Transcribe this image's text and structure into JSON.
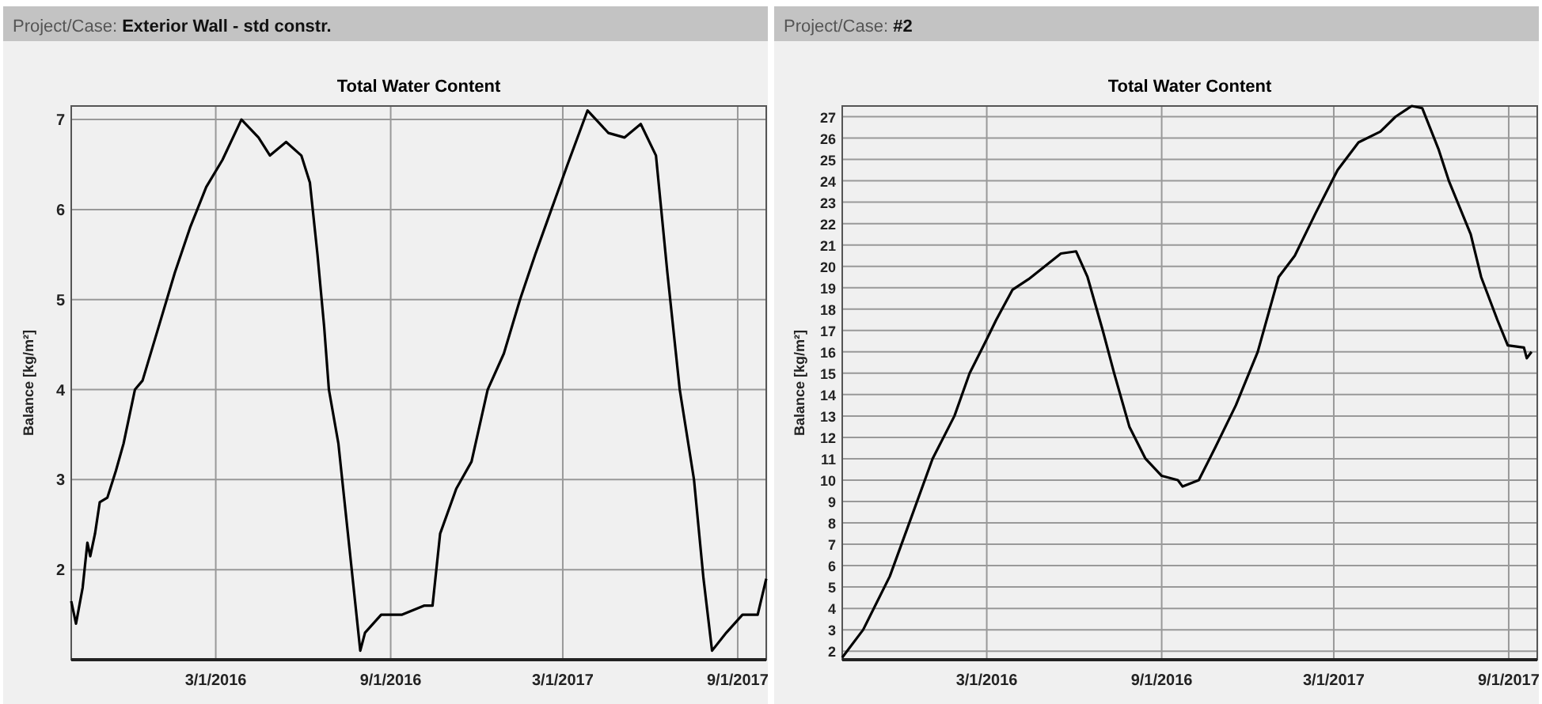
{
  "chart_data": [
    {
      "type": "line",
      "title": "Total Water Content",
      "annotations": [
        "Project/Case: Exterior Wall - std constr."
      ],
      "ylabel": "Balance [kg/m²]",
      "grid": true,
      "xlim": [
        "2015-10-01",
        "2017-10-01"
      ],
      "ylim": [
        1,
        7.15
      ],
      "yticks": [
        2,
        3,
        4,
        5,
        6,
        7
      ],
      "xticks": [
        {
          "value": "2016-03-01",
          "label": "3/1/2016"
        },
        {
          "value": "2016-09-01",
          "label": "9/1/2016"
        },
        {
          "value": "2017-03-01",
          "label": "3/1/2017"
        },
        {
          "value": "2017-09-01",
          "label": "9/1/2017"
        }
      ],
      "x": [
        "2015-10-01",
        "2015-10-06",
        "2015-10-13",
        "2015-10-18",
        "2015-10-21",
        "2015-10-26",
        "2015-10-31",
        "2015-11-08",
        "2015-11-17",
        "2015-11-25",
        "2015-12-07",
        "2015-12-15",
        "2016-01-01",
        "2016-01-18",
        "2016-02-03",
        "2016-02-20",
        "2016-03-08",
        "2016-03-28",
        "2016-04-15",
        "2016-04-27",
        "2016-05-14",
        "2016-05-30",
        "2016-06-08",
        "2016-06-16",
        "2016-06-23",
        "2016-06-28",
        "2016-07-08",
        "2016-07-20",
        "2016-07-31",
        "2016-08-05",
        "2016-08-22",
        "2016-09-13",
        "2016-10-06",
        "2016-10-15",
        "2016-10-23",
        "2016-11-09",
        "2016-11-25",
        "2016-12-12",
        "2016-12-29",
        "2017-01-15",
        "2017-01-31",
        "2017-02-17",
        "2017-03-06",
        "2017-03-27",
        "2017-04-18",
        "2017-05-05",
        "2017-05-22",
        "2017-06-07",
        "2017-06-19",
        "2017-07-02",
        "2017-07-17",
        "2017-07-27",
        "2017-08-05",
        "2017-08-20",
        "2017-09-06",
        "2017-09-22",
        "2017-10-01"
      ],
      "series": [
        {
          "color": "#000000",
          "line_style": "solid",
          "values": [
            1.65,
            1.4,
            1.8,
            2.3,
            2.15,
            2.4,
            2.75,
            2.8,
            3.1,
            3.4,
            4.0,
            4.1,
            4.7,
            5.3,
            5.8,
            6.25,
            6.55,
            7.0,
            6.8,
            6.6,
            6.75,
            6.6,
            6.3,
            5.5,
            4.7,
            4.0,
            3.4,
            2.2,
            1.1,
            1.3,
            1.5,
            1.5,
            1.6,
            1.6,
            2.4,
            2.9,
            3.2,
            4.0,
            4.4,
            5.0,
            5.5,
            6.0,
            6.5,
            7.1,
            6.85,
            6.8,
            6.95,
            6.6,
            5.3,
            4.0,
            3.0,
            1.9,
            1.1,
            1.3,
            1.5,
            1.5,
            1.9
          ]
        }
      ]
    },
    {
      "type": "line",
      "title": "Total Water Content",
      "annotations": [
        "Project/Case: #2"
      ],
      "ylabel": "Balance [kg/m²]",
      "grid": true,
      "xlim": [
        "2015-10-01",
        "2017-10-01"
      ],
      "ylim": [
        1.6,
        27.5
      ],
      "yticks": [
        2,
        3,
        4,
        5,
        6,
        7,
        8,
        9,
        10,
        11,
        12,
        13,
        14,
        15,
        16,
        17,
        18,
        19,
        20,
        21,
        22,
        23,
        24,
        25,
        26,
        27
      ],
      "xticks": [
        {
          "value": "2016-03-01",
          "label": "3/1/2016"
        },
        {
          "value": "2016-09-01",
          "label": "9/1/2016"
        },
        {
          "value": "2017-03-01",
          "label": "3/1/2017"
        },
        {
          "value": "2017-09-01",
          "label": "9/1/2017"
        }
      ],
      "x": [
        "2015-10-01",
        "2015-10-23",
        "2015-11-20",
        "2015-12-13",
        "2016-01-04",
        "2016-01-27",
        "2016-02-12",
        "2016-02-29",
        "2016-03-11",
        "2016-03-28",
        "2016-04-14",
        "2016-05-01",
        "2016-05-18",
        "2016-06-03",
        "2016-06-15",
        "2016-07-01",
        "2016-07-13",
        "2016-07-29",
        "2016-08-15",
        "2016-09-01",
        "2016-09-18",
        "2016-09-23",
        "2016-10-10",
        "2016-10-27",
        "2016-11-18",
        "2016-12-11",
        "2017-01-02",
        "2017-01-19",
        "2017-02-10",
        "2017-03-05",
        "2017-03-27",
        "2017-04-19",
        "2017-05-05",
        "2017-05-22",
        "2017-06-02",
        "2017-06-19",
        "2017-06-30",
        "2017-07-23",
        "2017-08-03",
        "2017-08-20",
        "2017-08-31",
        "2017-09-17",
        "2017-09-20",
        "2017-09-25"
      ],
      "series": [
        {
          "color": "#000000",
          "line_style": "solid",
          "values": [
            1.7,
            3.0,
            5.5,
            8.3,
            11.0,
            13.0,
            15.0,
            16.5,
            17.5,
            18.9,
            19.4,
            20.0,
            20.6,
            20.7,
            19.5,
            17.0,
            15.0,
            12.5,
            11.0,
            10.2,
            10.0,
            9.7,
            10.0,
            11.5,
            13.5,
            16.0,
            19.5,
            20.5,
            22.5,
            24.5,
            25.8,
            26.3,
            27.0,
            27.5,
            27.4,
            25.5,
            24.0,
            21.5,
            19.5,
            17.5,
            16.3,
            16.2,
            15.7,
            16.0
          ]
        }
      ]
    }
  ]
}
